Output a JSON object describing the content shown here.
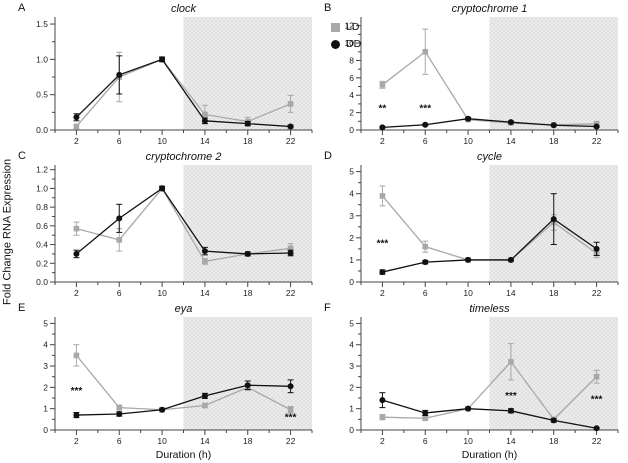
{
  "figure": {
    "ylabel": "Fold Change RNA Expression",
    "legend": {
      "items": [
        {
          "label": "LD",
          "marker": "square",
          "color": "#a8a8a8"
        },
        {
          "label": "DD",
          "marker": "circle",
          "color": "#111111"
        }
      ]
    },
    "colors": {
      "ld": "#a8a8a8",
      "dd": "#111111",
      "shade": "#ebebeb",
      "shade_dot": "#c9c9c9",
      "axis": "#444444"
    }
  },
  "chart_data": [
    {
      "panel": "A",
      "type": "line",
      "title": "clock",
      "xlabel": "",
      "x": [
        2,
        6,
        10,
        14,
        18,
        22
      ],
      "xticks": [
        2,
        6,
        10,
        14,
        18,
        22
      ],
      "xlim": [
        0,
        24
      ],
      "ylim": [
        0,
        1.6
      ],
      "yticks": [
        0,
        0.5,
        1.0,
        1.5
      ],
      "ydecimals": 1,
      "shade_x": [
        12,
        24
      ],
      "series": [
        {
          "name": "LD",
          "marker": "square",
          "values": [
            0.05,
            0.75,
            1.0,
            0.22,
            0.12,
            0.37
          ],
          "err": [
            0.03,
            0.35,
            0.04,
            0.13,
            0.06,
            0.12
          ]
        },
        {
          "name": "DD",
          "marker": "circle",
          "values": [
            0.18,
            0.78,
            1.0,
            0.13,
            0.09,
            0.05
          ],
          "err": [
            0.05,
            0.27,
            0.03,
            0.04,
            0.03,
            0.02
          ]
        }
      ],
      "annotations": []
    },
    {
      "panel": "B",
      "type": "line",
      "title": "cryptochrome 1",
      "xlabel": "",
      "x": [
        2,
        6,
        10,
        14,
        18,
        22
      ],
      "xticks": [
        2,
        6,
        10,
        14,
        18,
        22
      ],
      "xlim": [
        0,
        24
      ],
      "ylim": [
        0,
        13
      ],
      "yticks": [
        0,
        2,
        4,
        6,
        8,
        10,
        12
      ],
      "ydecimals": 0,
      "shade_x": [
        12,
        24
      ],
      "series": [
        {
          "name": "LD",
          "marker": "square",
          "values": [
            5.2,
            9.0,
            1.2,
            0.8,
            0.6,
            0.7
          ],
          "err": [
            0.4,
            2.6,
            0.2,
            0.15,
            0.1,
            0.3
          ]
        },
        {
          "name": "DD",
          "marker": "circle",
          "values": [
            0.3,
            0.6,
            1.3,
            0.9,
            0.55,
            0.4
          ],
          "err": [
            0.08,
            0.1,
            0.15,
            0.12,
            0.08,
            0.08
          ]
        }
      ],
      "annotations": [
        {
          "x": 2,
          "y": 2.1,
          "text": "**"
        },
        {
          "x": 6,
          "y": 2.1,
          "text": "***"
        }
      ]
    },
    {
      "panel": "C",
      "type": "line",
      "title": "cryptochrome 2",
      "xlabel": "",
      "x": [
        2,
        6,
        10,
        14,
        18,
        22
      ],
      "xticks": [
        2,
        6,
        10,
        14,
        18,
        22
      ],
      "xlim": [
        0,
        24
      ],
      "ylim": [
        0,
        1.25
      ],
      "yticks": [
        0,
        0.2,
        0.4,
        0.6,
        0.8,
        1.0,
        1.2
      ],
      "ydecimals": 1,
      "shade_x": [
        12,
        24
      ],
      "series": [
        {
          "name": "LD",
          "marker": "square",
          "values": [
            0.57,
            0.45,
            1.0,
            0.22,
            0.3,
            0.36
          ],
          "err": [
            0.07,
            0.12,
            0.03,
            0.03,
            0.02,
            0.05
          ]
        },
        {
          "name": "DD",
          "marker": "circle",
          "values": [
            0.3,
            0.68,
            1.0,
            0.33,
            0.3,
            0.31
          ],
          "err": [
            0.04,
            0.15,
            0.02,
            0.04,
            0.02,
            0.03
          ]
        }
      ],
      "annotations": []
    },
    {
      "panel": "D",
      "type": "line",
      "title": "cycle",
      "xlabel": "",
      "x": [
        2,
        6,
        10,
        14,
        18,
        22
      ],
      "xticks": [
        2,
        6,
        10,
        14,
        18,
        22
      ],
      "xlim": [
        0,
        24
      ],
      "ylim": [
        0,
        5.3
      ],
      "yticks": [
        0,
        1,
        2,
        3,
        4,
        5
      ],
      "ydecimals": 0,
      "shade_x": [
        12,
        24
      ],
      "series": [
        {
          "name": "LD",
          "marker": "square",
          "values": [
            3.9,
            1.6,
            1.0,
            1.0,
            2.7,
            1.3
          ],
          "err": [
            0.45,
            0.25,
            0.05,
            0.04,
            0.35,
            0.2
          ]
        },
        {
          "name": "DD",
          "marker": "circle",
          "values": [
            0.45,
            0.9,
            1.0,
            1.0,
            2.85,
            1.5
          ],
          "err": [
            0.1,
            0.08,
            0.03,
            0.04,
            1.15,
            0.3
          ]
        }
      ],
      "annotations": [
        {
          "x": 2,
          "y": 1.6,
          "text": "***"
        }
      ]
    },
    {
      "panel": "E",
      "type": "line",
      "title": "eya",
      "xlabel": "Duration (h)",
      "x": [
        2,
        6,
        10,
        14,
        18,
        22
      ],
      "xticks": [
        2,
        6,
        10,
        14,
        18,
        22
      ],
      "xlim": [
        0,
        24
      ],
      "ylim": [
        0,
        5.3
      ],
      "yticks": [
        0,
        1,
        2,
        3,
        4,
        5
      ],
      "ydecimals": 0,
      "shade_x": [
        12,
        24
      ],
      "series": [
        {
          "name": "LD",
          "marker": "square",
          "values": [
            3.5,
            1.05,
            0.95,
            1.15,
            2.0,
            0.95
          ],
          "err": [
            0.5,
            0.12,
            0.05,
            0.1,
            0.15,
            0.15
          ]
        },
        {
          "name": "DD",
          "marker": "circle",
          "values": [
            0.7,
            0.75,
            0.95,
            1.6,
            2.1,
            2.05
          ],
          "err": [
            0.12,
            0.1,
            0.04,
            0.12,
            0.2,
            0.3
          ]
        }
      ],
      "annotations": [
        {
          "x": 2,
          "y": 1.7,
          "text": "***"
        },
        {
          "x": 22,
          "y": 0.45,
          "text": "***"
        }
      ]
    },
    {
      "panel": "F",
      "type": "line",
      "title": "timeless",
      "xlabel": "Duration (h)",
      "x": [
        2,
        6,
        10,
        14,
        18,
        22
      ],
      "xticks": [
        2,
        6,
        10,
        14,
        18,
        22
      ],
      "xlim": [
        0,
        24
      ],
      "ylim": [
        0,
        5.3
      ],
      "yticks": [
        0,
        1,
        2,
        3,
        4,
        5
      ],
      "ydecimals": 0,
      "shade_x": [
        12,
        24
      ],
      "series": [
        {
          "name": "LD",
          "marker": "square",
          "values": [
            0.6,
            0.55,
            1.0,
            3.2,
            0.5,
            2.5
          ],
          "err": [
            0.12,
            0.1,
            0.04,
            0.85,
            0.1,
            0.3
          ]
        },
        {
          "name": "DD",
          "marker": "circle",
          "values": [
            1.4,
            0.8,
            1.0,
            0.9,
            0.45,
            0.08
          ],
          "err": [
            0.35,
            0.12,
            0.04,
            0.1,
            0.08,
            0.04
          ]
        }
      ],
      "annotations": [
        {
          "x": 14,
          "y": 1.45,
          "text": "***"
        },
        {
          "x": 22,
          "y": 1.3,
          "text": "***"
        }
      ]
    }
  ]
}
